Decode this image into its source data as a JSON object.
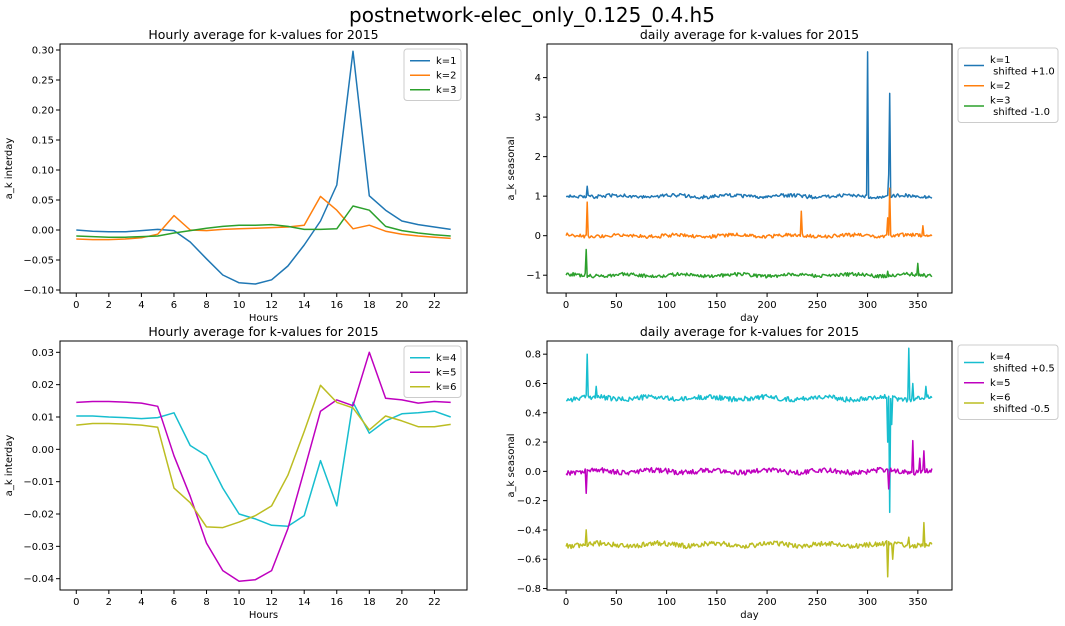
{
  "figure": {
    "title": "postnetwork-elec_only_0.125_0.4.h5"
  },
  "chart_data": [
    {
      "type": "line",
      "title": "Hourly average for k-values for 2015",
      "xlabel": "Hours",
      "ylabel": "a_k interday",
      "xlim": [
        -1,
        24
      ],
      "ylim": [
        -0.105,
        0.31
      ],
      "xticks": [
        0,
        2,
        4,
        6,
        8,
        10,
        12,
        14,
        16,
        18,
        20,
        22
      ],
      "yticks": [
        -0.1,
        -0.05,
        0.0,
        0.05,
        0.1,
        0.15,
        0.2,
        0.25,
        0.3
      ],
      "ytick_labels": [
        "−0.10",
        "−0.05",
        "0.00",
        "0.05",
        "0.10",
        "0.15",
        "0.20",
        "0.25",
        "0.30"
      ],
      "legend_placement": "top-right-inside",
      "x": [
        0,
        1,
        2,
        3,
        4,
        5,
        6,
        7,
        8,
        9,
        10,
        11,
        12,
        13,
        14,
        15,
        16,
        17,
        18,
        19,
        20,
        21,
        22,
        23
      ],
      "series": [
        {
          "name": "k=1",
          "color": "#1f77b4",
          "values": [
            0.0,
            -0.002,
            -0.003,
            -0.003,
            -0.001,
            0.001,
            -0.001,
            -0.02,
            -0.048,
            -0.075,
            -0.088,
            -0.09,
            -0.083,
            -0.06,
            -0.025,
            0.015,
            0.075,
            0.298,
            0.057,
            0.033,
            0.015,
            0.009,
            0.005,
            0.001
          ]
        },
        {
          "name": "k=2",
          "color": "#ff7f0e",
          "values": [
            -0.015,
            -0.016,
            -0.016,
            -0.015,
            -0.013,
            -0.007,
            0.024,
            0.0,
            -0.001,
            0.001,
            0.002,
            0.003,
            0.004,
            0.005,
            0.008,
            0.056,
            0.033,
            0.002,
            0.008,
            -0.002,
            -0.007,
            -0.01,
            -0.012,
            -0.014
          ]
        },
        {
          "name": "k=3",
          "color": "#2ca02c",
          "values": [
            -0.01,
            -0.011,
            -0.012,
            -0.012,
            -0.011,
            -0.01,
            -0.005,
            -0.001,
            0.003,
            0.006,
            0.008,
            0.008,
            0.009,
            0.006,
            0.001,
            0.001,
            0.002,
            0.04,
            0.033,
            0.006,
            -0.001,
            -0.005,
            -0.008,
            -0.01
          ]
        }
      ]
    },
    {
      "type": "line",
      "title": "daily average for k-values for 2015",
      "xlabel": "day",
      "ylabel": "a_k seasonal",
      "xlim": [
        -19,
        384
      ],
      "ylim": [
        -1.45,
        4.85
      ],
      "xticks": [
        0,
        50,
        100,
        150,
        200,
        250,
        300,
        350
      ],
      "yticks": [
        -1,
        0,
        1,
        2,
        3,
        4
      ],
      "ytick_labels": [
        "−1",
        "0",
        "1",
        "2",
        "3",
        "4"
      ],
      "legend_placement": "outside-right",
      "series": [
        {
          "name": "k=1\n shifted +1.0",
          "color": "#1f77b4",
          "base": 1.0,
          "spikes": [
            [
              21,
              1.25
            ],
            [
              300,
              4.65
            ],
            [
              321,
              1.55
            ],
            [
              322,
              3.6
            ],
            [
              350,
              1.0
            ]
          ]
        },
        {
          "name": "k=2",
          "color": "#ff7f0e",
          "base": 0.0,
          "spikes": [
            [
              21,
              0.85
            ],
            [
              234,
              0.62
            ],
            [
              320,
              0.45
            ],
            [
              322,
              1.2
            ],
            [
              355,
              0.25
            ]
          ]
        },
        {
          "name": "k=3\n shifted -1.0",
          "color": "#2ca02c",
          "base": -1.0,
          "spikes": [
            [
              19,
              -0.95
            ],
            [
              20,
              -0.35
            ],
            [
              350,
              -0.7
            ],
            [
              320,
              -0.9
            ]
          ]
        }
      ]
    },
    {
      "type": "line",
      "title": "Hourly average for k-values for 2015",
      "xlabel": "Hours",
      "ylabel": "a_k interday",
      "xlim": [
        -1,
        24
      ],
      "ylim": [
        -0.0435,
        0.0335
      ],
      "xticks": [
        0,
        2,
        4,
        6,
        8,
        10,
        12,
        14,
        16,
        18,
        20,
        22
      ],
      "yticks": [
        -0.04,
        -0.03,
        -0.02,
        -0.01,
        0.0,
        0.01,
        0.02,
        0.03
      ],
      "ytick_labels": [
        "−0.04",
        "−0.03",
        "−0.02",
        "−0.01",
        "0.00",
        "0.01",
        "0.02",
        "0.03"
      ],
      "legend_placement": "top-right-inside",
      "x": [
        0,
        1,
        2,
        3,
        4,
        5,
        6,
        7,
        8,
        9,
        10,
        11,
        12,
        13,
        14,
        15,
        16,
        17,
        18,
        19,
        20,
        21,
        22,
        23
      ],
      "series": [
        {
          "name": "k=4",
          "color": "#17becf",
          "values": [
            0.0103,
            0.0103,
            0.01,
            0.0098,
            0.0095,
            0.0098,
            0.0113,
            0.0012,
            -0.002,
            -0.012,
            -0.02,
            -0.0215,
            -0.0235,
            -0.0238,
            -0.0205,
            -0.0035,
            -0.0175,
            0.0145,
            0.005,
            0.0088,
            0.011,
            0.0113,
            0.0118,
            0.01
          ]
        },
        {
          "name": "k=5",
          "color": "#bf00bf",
          "values": [
            0.0145,
            0.0148,
            0.0148,
            0.0146,
            0.0143,
            0.0133,
            -0.002,
            -0.0145,
            -0.029,
            -0.0375,
            -0.0408,
            -0.0403,
            -0.0375,
            -0.0245,
            -0.0065,
            0.0118,
            0.0153,
            0.0135,
            0.03,
            0.0158,
            0.0153,
            0.0143,
            0.0148,
            0.0145
          ]
        },
        {
          "name": "k=6",
          "color": "#bcbd22",
          "values": [
            0.0075,
            0.008,
            0.008,
            0.0078,
            0.0075,
            0.0068,
            -0.012,
            -0.0165,
            -0.024,
            -0.0242,
            -0.0225,
            -0.0205,
            -0.0175,
            -0.008,
            0.0055,
            0.0198,
            0.0145,
            0.0128,
            0.006,
            0.0103,
            0.0088,
            0.007,
            0.007,
            0.0077
          ]
        }
      ]
    },
    {
      "type": "line",
      "title": "daily average for k-values for 2015",
      "xlabel": "day",
      "ylabel": "a_k seasonal",
      "xlim": [
        -19,
        384
      ],
      "ylim": [
        -0.81,
        0.89
      ],
      "xticks": [
        0,
        50,
        100,
        150,
        200,
        250,
        300,
        350
      ],
      "yticks": [
        -0.8,
        -0.6,
        -0.4,
        -0.2,
        0.0,
        0.2,
        0.4,
        0.6,
        0.8
      ],
      "ytick_labels": [
        "−0.8",
        "−0.6",
        "−0.4",
        "−0.2",
        "0.0",
        "0.2",
        "0.4",
        "0.6",
        "0.8"
      ],
      "legend_placement": "outside-right",
      "series": [
        {
          "name": "k=4\n shifted +0.5",
          "color": "#17becf",
          "base": 0.5,
          "spikes": [
            [
              21,
              0.8
            ],
            [
              30,
              0.58
            ],
            [
              320,
              0.2
            ],
            [
              322,
              -0.28
            ],
            [
              324,
              0.32
            ],
            [
              341,
              0.84
            ],
            [
              345,
              0.6
            ],
            [
              358,
              0.58
            ]
          ]
        },
        {
          "name": "k=5",
          "color": "#bf00bf",
          "base": 0.0,
          "spikes": [
            [
              20,
              -0.15
            ],
            [
              321,
              -0.12
            ],
            [
              345,
              0.21
            ],
            [
              356,
              0.14
            ],
            [
              352,
              0.09
            ]
          ]
        },
        {
          "name": "k=6\n shifted -0.5",
          "color": "#bcbd22",
          "base": -0.5,
          "spikes": [
            [
              20,
              -0.4
            ],
            [
              320,
              -0.72
            ],
            [
              325,
              -0.6
            ],
            [
              356,
              -0.35
            ],
            [
              341,
              -0.45
            ]
          ]
        }
      ]
    }
  ]
}
